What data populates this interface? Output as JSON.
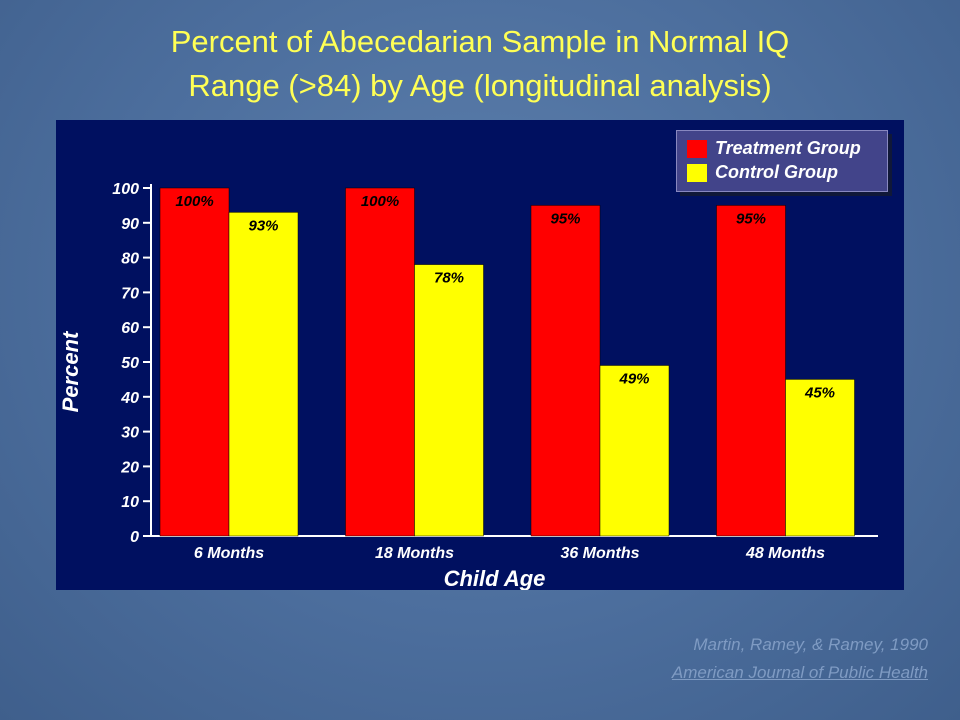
{
  "slide": {
    "title_line1": "Percent of Abecedarian Sample in Normal IQ",
    "title_line2": "Range (>84) by Age (longitudinal analysis)",
    "citation_authors": "Martin, Ramey, & Ramey, 1990",
    "citation_journal": "American Journal of Public Health"
  },
  "colors": {
    "title": "#ffff55",
    "panel": "#001060",
    "treatment": "#ff0000",
    "control": "#ffff00"
  },
  "chart_data": {
    "type": "bar",
    "categories": [
      "6 Months",
      "18 Months",
      "36 Months",
      "48 Months"
    ],
    "series": [
      {
        "name": "Treatment Group",
        "values": [
          100,
          100,
          95,
          95
        ],
        "labels": [
          "100%",
          "100%",
          "95%",
          "95%"
        ],
        "color": "#ff0000"
      },
      {
        "name": "Control Group",
        "values": [
          93,
          78,
          49,
          45
        ],
        "labels": [
          "93%",
          "78%",
          "49%",
          "45%"
        ],
        "color": "#ffff00"
      }
    ],
    "xlabel": "Child Age",
    "ylabel": "Percent",
    "ylim": [
      0,
      100
    ],
    "yticks": [
      0,
      10,
      20,
      30,
      40,
      50,
      60,
      70,
      80,
      90,
      100
    ],
    "legend_position": "top-right",
    "grid": false
  }
}
